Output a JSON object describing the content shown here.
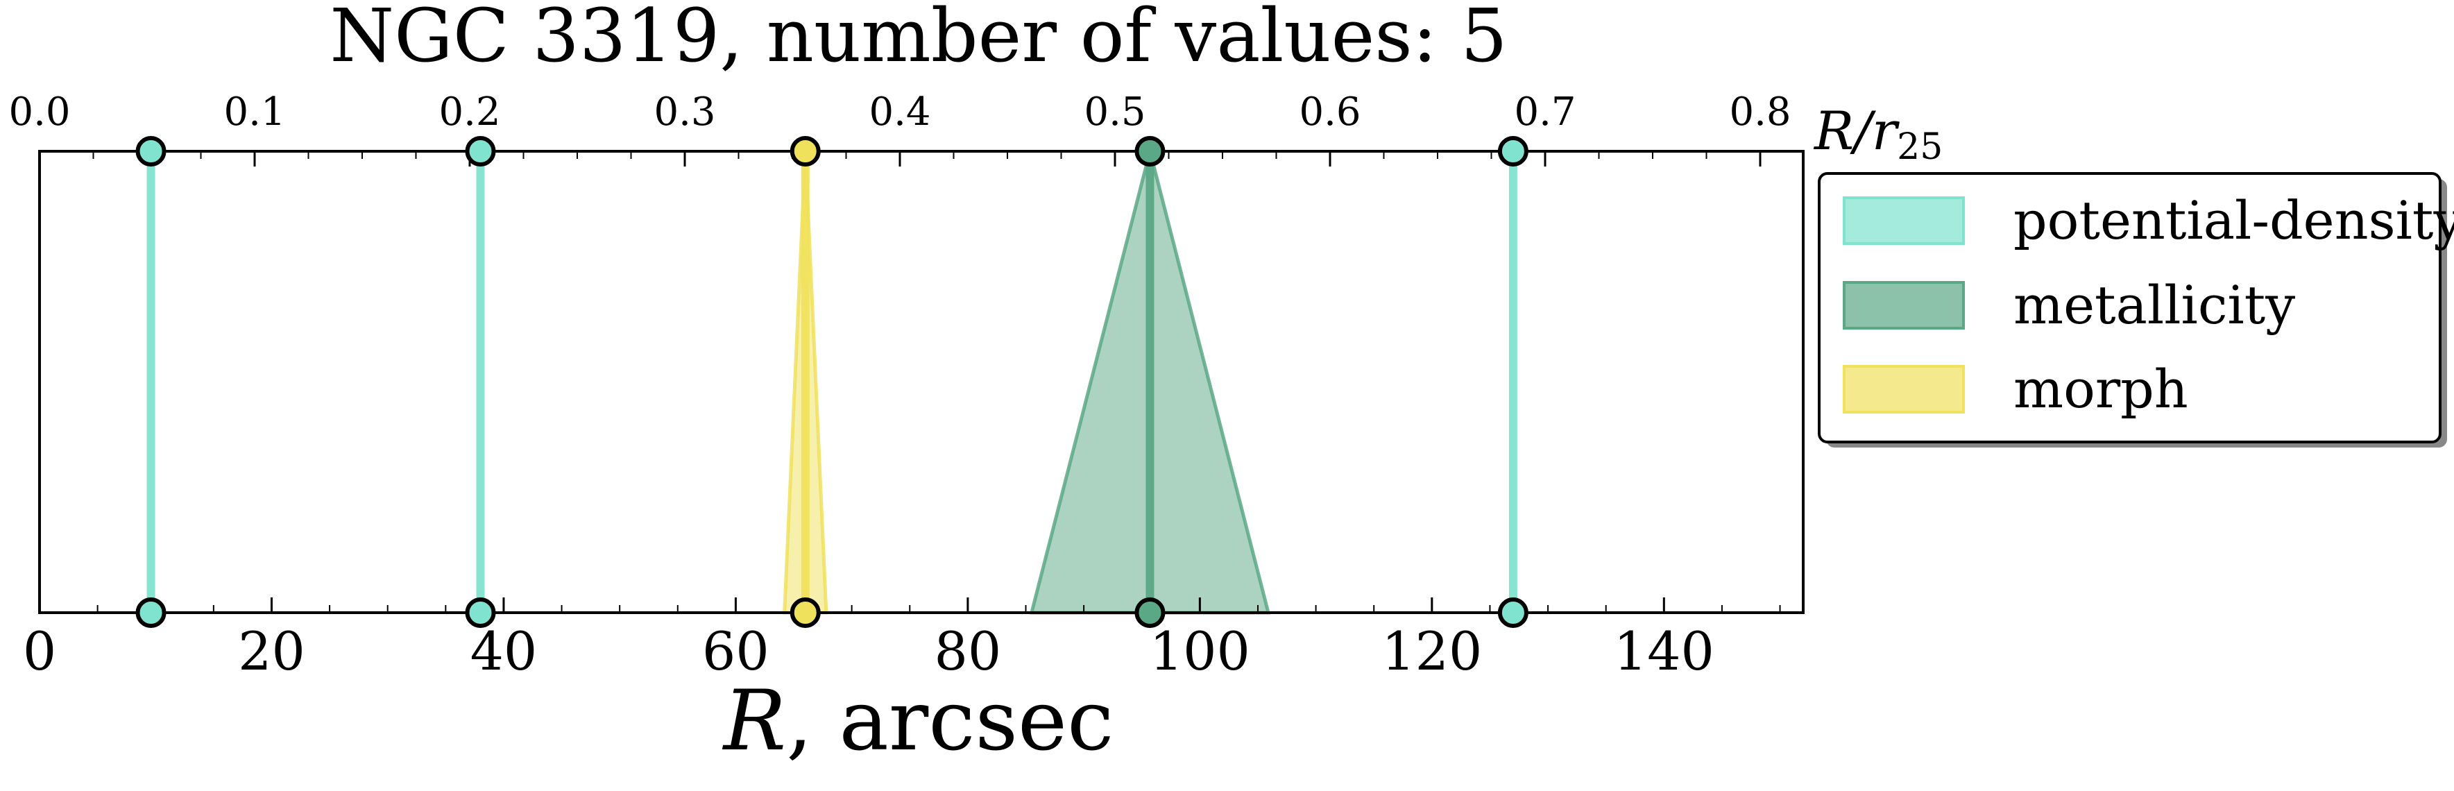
{
  "chart_data": {
    "type": "scatter",
    "title": "NGC 3319, number of values: 5",
    "xlabel": "R, arcsec",
    "xlabel_top": "R/r25",
    "xlim": [
      0,
      152
    ],
    "x_ticks": [
      0,
      20,
      40,
      60,
      80,
      100,
      120,
      140
    ],
    "xlim_top": [
      0.0,
      0.82
    ],
    "x_ticks_top": [
      0.0,
      0.1,
      0.2,
      0.3,
      0.4,
      0.5,
      0.6,
      0.7,
      0.8
    ],
    "grid": false,
    "legend": {
      "placement": "outside-right"
    },
    "series": [
      {
        "name": "potential-density",
        "color": "#7fe3cf",
        "points": [
          {
            "x": 9.6,
            "spread": 0
          },
          {
            "x": 38.0,
            "spread": 0
          },
          {
            "x": 127.0,
            "spread": 0
          }
        ]
      },
      {
        "name": "metallicity",
        "color": "#5aa885",
        "points": [
          {
            "x": 95.7,
            "spread": 10.2
          }
        ]
      },
      {
        "name": "morph",
        "color": "#f0e15c",
        "points": [
          {
            "x": 66.0,
            "spread": 1.8
          }
        ]
      }
    ]
  }
}
